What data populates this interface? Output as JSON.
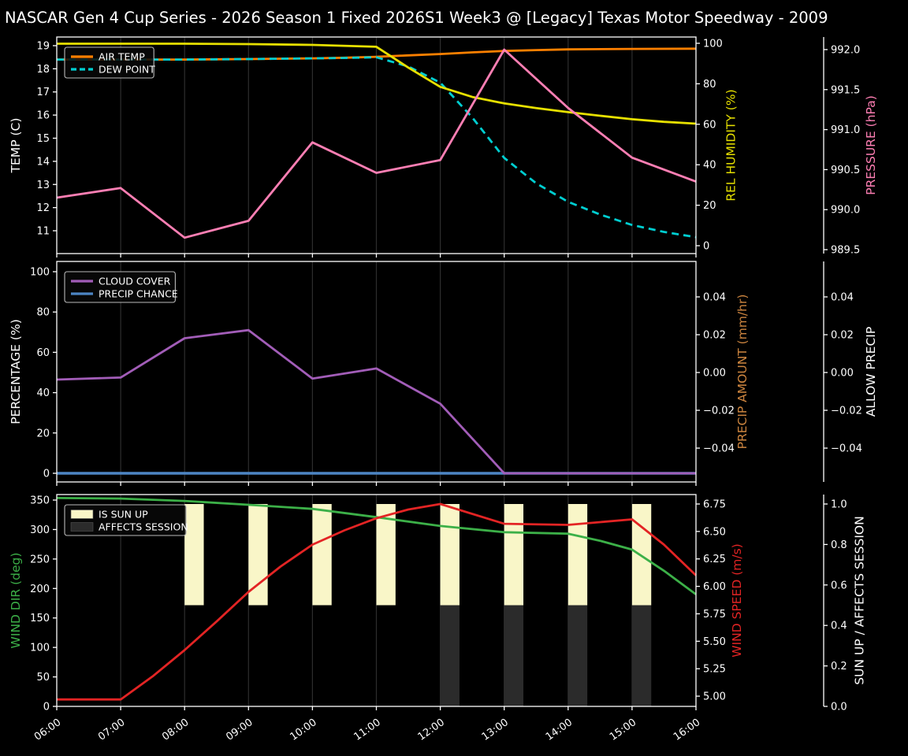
{
  "title": "NASCAR Gen 4 Cup Series - 2026 Season 1 Fixed 2026S1 Week3 @ [Legacy] Texas Motor Speedway - 2009",
  "colors": {
    "background": "#000000",
    "foreground": "#ffffff",
    "gridline": "#2d2d2d",
    "air_temp": "#ff8000",
    "dew_point": "#00ced1",
    "humidity": "#e6e000",
    "pressure": "#ff7fb4",
    "cloud_cover": "#a25db8",
    "precip_chance": "#4d85c4",
    "precip_amount_label": "#cd853f",
    "wind_dir": "#3cb048",
    "wind_speed": "#e32424",
    "sun_up_bar": "#f9f6c8",
    "affects_session_bar": "#2b2b2b"
  },
  "chart_data": {
    "type": "line",
    "suptitle": "NASCAR Gen 4 Cup Series - 2026 Season 1 Fixed 2026S1 Week3 @ [Legacy] Texas Motor Speedway - 2009",
    "x_axis": {
      "min": 6,
      "max": 16,
      "tick_hours": [
        6,
        7,
        8,
        9,
        10,
        11,
        12,
        13,
        14,
        15,
        16
      ],
      "tick_labels": [
        "06:00",
        "07:00",
        "08:00",
        "09:00",
        "10:00",
        "11:00",
        "12:00",
        "13:00",
        "14:00",
        "15:00",
        "16:00"
      ]
    },
    "plots": [
      {
        "name": "temperature-humidity-pressure",
        "axes": [
          {
            "id": "temp",
            "side": "left",
            "label": "TEMP (C)",
            "color": "#ffffff",
            "ticks": [
              11,
              12,
              13,
              14,
              15,
              16,
              17,
              18,
              19
            ],
            "tick_labels": [
              "11",
              "12",
              "13",
              "14",
              "15",
              "16",
              "17",
              "18",
              "19"
            ],
            "range": [
              10.013,
              19.374
            ]
          },
          {
            "id": "hum",
            "side": "right",
            "label": "REL HUMIDITY (%)",
            "color": "#e6e000",
            "ticks": [
              0,
              20,
              40,
              60,
              80,
              100
            ],
            "tick_labels": [
              "0",
              "20",
              "40",
              "60",
              "80",
              "100"
            ],
            "range": [
              -3.89,
              103.11
            ]
          },
          {
            "id": "pres",
            "side": "right2",
            "label": "PRESSURE (hPa)",
            "color": "#ff7fb4",
            "ticks": [
              989.5,
              990.0,
              990.5,
              991.0,
              991.5,
              992.0
            ],
            "tick_labels": [
              "989.5",
              "990.0",
              "990.5",
              "991.0",
              "991.5",
              "992.0"
            ],
            "range": [
              989.451,
              992.157
            ]
          }
        ],
        "series": [
          {
            "name": "AIR TEMP",
            "axis": "temp",
            "color": "#ff8000",
            "width": 2.8,
            "x": [
              6,
              7,
              8,
              9,
              10,
              10.5,
              11,
              11.5,
              12,
              12.5,
              13,
              13.5,
              14,
              15,
              16
            ],
            "y": [
              18.4,
              18.4,
              18.4,
              18.42,
              18.45,
              18.48,
              18.52,
              18.58,
              18.64,
              18.71,
              18.77,
              18.81,
              18.84,
              18.86,
              18.87
            ]
          },
          {
            "name": "DEW POINT",
            "axis": "temp",
            "color": "#00ced1",
            "width": 2.8,
            "dash": "9 6",
            "x": [
              6,
              7,
              8,
              9,
              10,
              10.5,
              11,
              11.5,
              12,
              12.5,
              13,
              13.5,
              14,
              14.5,
              15,
              15.5,
              16
            ],
            "y": [
              18.4,
              18.4,
              18.4,
              18.42,
              18.45,
              18.47,
              18.5,
              18.1,
              17.4,
              15.9,
              14.15,
              13.05,
              12.25,
              11.7,
              11.25,
              10.95,
              10.72
            ]
          },
          {
            "name": "REL HUMIDITY",
            "axis": "hum",
            "color": "#e6e000",
            "width": 2.8,
            "x": [
              6,
              7,
              8,
              9,
              10,
              11,
              11.5,
              12,
              12.5,
              13,
              13.5,
              14,
              14.5,
              15,
              15.5,
              16
            ],
            "y": [
              99.8,
              99.8,
              99.8,
              99.6,
              99.2,
              98.3,
              88,
              78.5,
              73.5,
              70.3,
              68,
              66,
              64.2,
              62.5,
              61.2,
              60.3
            ]
          },
          {
            "name": "PRESSURE",
            "axis": "pres",
            "color": "#ff7fb4",
            "width": 2.8,
            "x": [
              6,
              7,
              8,
              9,
              10,
              11,
              12,
              13,
              14,
              15,
              16
            ],
            "y": [
              990.15,
              990.27,
              989.65,
              989.86,
              990.84,
              990.46,
              990.62,
              992.0,
              991.27,
              990.65,
              990.35
            ]
          }
        ],
        "bars": [],
        "legend": [
          {
            "label": "AIR TEMP",
            "swatch": "line",
            "color": "#ff8000"
          },
          {
            "label": "DEW POINT",
            "swatch": "line",
            "color": "#00ced1",
            "dash": "7 4"
          }
        ]
      },
      {
        "name": "cloud-precip",
        "axes": [
          {
            "id": "pct",
            "side": "left",
            "label": "PERCENTAGE (%)",
            "color": "#ffffff",
            "ticks": [
              0,
              20,
              40,
              60,
              80,
              100
            ],
            "tick_labels": [
              "0",
              "20",
              "40",
              "60",
              "80",
              "100"
            ],
            "range": [
              -4.3,
              105.08
            ]
          },
          {
            "id": "pamt",
            "side": "right",
            "label": "PRECIP AMOUNT (mm/hr)",
            "color": "#cd853f",
            "ticks": [
              0.04,
              0.02,
              0,
              -0.02,
              -0.04
            ],
            "tick_labels": [
              "0.04",
              "0.02",
              "0.00",
              "−0.02",
              "−0.04"
            ],
            "range": [
              -0.0579,
              0.05875
            ]
          },
          {
            "id": "allow",
            "side": "right2",
            "label": "ALLOW PRECIP",
            "color": "#ffffff",
            "ticks": [
              0.04,
              0.02,
              0,
              -0.02,
              -0.04
            ],
            "tick_labels": [
              "0.04",
              "0.02",
              "0.00",
              "−0.02",
              "−0.04"
            ],
            "range": [
              -0.0579,
              0.05875
            ]
          }
        ],
        "series": [
          {
            "name": "PRECIP CHANCE",
            "axis": "pct",
            "color": "#4d85c4",
            "width": 3.6,
            "x": [
              6,
              7,
              8,
              9,
              10,
              11,
              12,
              13,
              14,
              15,
              16
            ],
            "y": [
              0,
              0,
              0,
              0,
              0,
              0,
              0,
              0,
              0,
              0,
              0
            ]
          },
          {
            "name": "CLOUD COVER",
            "axis": "pct",
            "color": "#a25db8",
            "width": 2.8,
            "x": [
              6,
              7,
              8,
              9,
              10,
              11,
              12,
              13,
              14,
              15,
              16
            ],
            "y": [
              46.5,
              47.5,
              67,
              71,
              47,
              52,
              34.5,
              0,
              0,
              0,
              0
            ]
          }
        ],
        "bars": [],
        "legend": [
          {
            "label": "CLOUD COVER",
            "swatch": "line",
            "color": "#a25db8"
          },
          {
            "label": "PRECIP CHANCE",
            "swatch": "line",
            "color": "#4d85c4"
          }
        ]
      },
      {
        "name": "wind-sun",
        "axes": [
          {
            "id": "dir",
            "side": "left",
            "label": "WIND DIR (deg)",
            "color": "#3cb048",
            "ticks": [
              0,
              50,
              100,
              150,
              200,
              250,
              300,
              350
            ],
            "tick_labels": [
              "0",
              "50",
              "100",
              "150",
              "200",
              "250",
              "300",
              "350"
            ],
            "range": [
              0,
              359.35
            ]
          },
          {
            "id": "spd",
            "side": "right",
            "label": "WIND SPEED (m/s)",
            "color": "#e32424",
            "ticks": [
              5.0,
              5.25,
              5.5,
              5.75,
              6.0,
              6.25,
              6.5,
              6.75
            ],
            "tick_labels": [
              "5.00",
              "5.25",
              "5.50",
              "5.75",
              "6.00",
              "6.25",
              "6.50",
              "6.75"
            ],
            "range": [
              4.907,
              6.836
            ]
          },
          {
            "id": "sun",
            "side": "right2",
            "label": "SUN UP / AFFECTS SESSION",
            "color": "#ffffff",
            "ticks": [
              0,
              0.2,
              0.4,
              0.6,
              0.8,
              1.0
            ],
            "tick_labels": [
              "0.0",
              "0.2",
              "0.4",
              "0.6",
              "0.8",
              "1.0"
            ],
            "range": [
              0,
              1.0467
            ]
          }
        ],
        "series": [
          {
            "name": "WIND DIR",
            "axis": "dir",
            "color": "#3cb048",
            "width": 2.8,
            "x": [
              6,
              7,
              8,
              9,
              10,
              11,
              12,
              13,
              14,
              14.5,
              15,
              15.5,
              16
            ],
            "y": [
              353.5,
              352.5,
              348.5,
              342,
              335,
              321,
              306,
              295.5,
              293,
              281,
              266,
              230,
              190
            ]
          },
          {
            "name": "WIND SPEED",
            "axis": "spd",
            "color": "#e32424",
            "width": 2.8,
            "x": [
              6,
              7,
              7.5,
              8,
              8.5,
              9,
              9.5,
              10,
              10.5,
              11,
              11.5,
              12,
              13,
              14,
              15,
              15.5,
              16
            ],
            "y": [
              4.97,
              4.97,
              5.18,
              5.42,
              5.68,
              5.95,
              6.18,
              6.38,
              6.51,
              6.62,
              6.7,
              6.75,
              6.57,
              6.56,
              6.61,
              6.38,
              6.1
            ]
          }
        ],
        "bars": [
          {
            "name": "IS SUN UP",
            "axis": "sun",
            "color": "#f9f6c8",
            "hours": [
              8,
              9,
              10,
              11,
              12,
              13,
              14,
              15
            ],
            "y0": 0.5,
            "y1": 1.0,
            "bar_width_hours": 0.3
          },
          {
            "name": "AFFECTS SESSION",
            "axis": "sun",
            "color": "#2b2b2b",
            "hours": [
              12,
              13,
              14,
              15
            ],
            "y0": 0.0,
            "y1": 0.5,
            "bar_width_hours": 0.3
          }
        ],
        "legend": [
          {
            "label": "IS SUN UP",
            "swatch": "rect",
            "color": "#f9f6c8"
          },
          {
            "label": "AFFECTS SESSION",
            "swatch": "rect",
            "color": "#2b2b2b"
          }
        ]
      }
    ]
  }
}
